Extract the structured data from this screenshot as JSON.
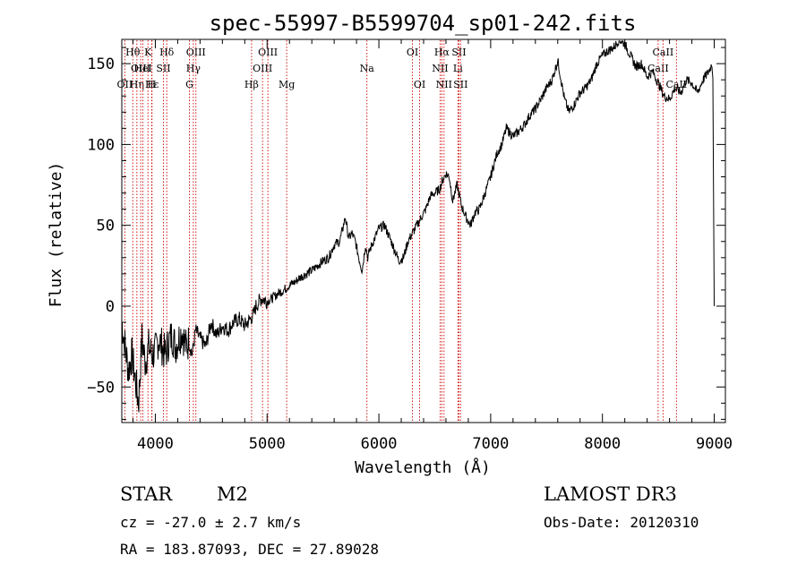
{
  "chart_data": {
    "type": "line",
    "title": "spec-55997-B5599704_sp01-242.fits",
    "xlabel": "Wavelength (Å)",
    "ylabel": "Flux (relative)",
    "xlim": [
      3700,
      9100
    ],
    "ylim": [
      -72,
      165
    ],
    "xticks": [
      4000,
      5000,
      6000,
      7000,
      8000,
      9000
    ],
    "yticks": [
      -50,
      0,
      50,
      100,
      150
    ],
    "grid": false,
    "series": [
      {
        "name": "spectrum",
        "color": "#000000",
        "x": [
          3700,
          3730,
          3760,
          3790,
          3820,
          3850,
          3880,
          3910,
          3940,
          3970,
          4000,
          4030,
          4060,
          4090,
          4120,
          4150,
          4180,
          4210,
          4240,
          4270,
          4300,
          4330,
          4360,
          4400,
          4450,
          4500,
          4550,
          4600,
          4650,
          4700,
          4750,
          4800,
          4850,
          4880,
          4900,
          4950,
          5000,
          5050,
          5100,
          5150,
          5200,
          5250,
          5300,
          5350,
          5400,
          5450,
          5500,
          5550,
          5600,
          5650,
          5700,
          5730,
          5760,
          5790,
          5820,
          5850,
          5880,
          5900,
          5920,
          5950,
          6000,
          6050,
          6080,
          6110,
          6140,
          6180,
          6220,
          6260,
          6300,
          6340,
          6380,
          6420,
          6460,
          6500,
          6540,
          6570,
          6600,
          6630,
          6660,
          6700,
          6740,
          6780,
          6820,
          6860,
          6900,
          6950,
          7000,
          7030,
          7060,
          7100,
          7140,
          7200,
          7250,
          7300,
          7350,
          7400,
          7450,
          7500,
          7550,
          7600,
          7630,
          7660,
          7700,
          7750,
          7800,
          7850,
          7900,
          7950,
          8000,
          8050,
          8100,
          8150,
          8200,
          8250,
          8300,
          8350,
          8400,
          8450,
          8500,
          8550,
          8600,
          8650,
          8700,
          8750,
          8800,
          8850,
          8900,
          8950,
          8980,
          8990,
          9000
        ],
        "values": [
          -10,
          -25,
          -40,
          -30,
          -45,
          -60,
          -20,
          -35,
          -25,
          -30,
          -28,
          -20,
          -25,
          -30,
          -22,
          -18,
          -25,
          -20,
          -15,
          -25,
          -22,
          -30,
          -15,
          -20,
          -25,
          -10,
          -18,
          -12,
          -15,
          -10,
          -8,
          -12,
          -8,
          -5,
          0,
          5,
          3,
          5,
          8,
          10,
          13,
          15,
          18,
          20,
          22,
          25,
          28,
          30,
          38,
          40,
          55,
          42,
          45,
          40,
          30,
          22,
          38,
          30,
          35,
          40,
          48,
          50,
          45,
          40,
          35,
          28,
          30,
          40,
          45,
          50,
          55,
          60,
          68,
          70,
          72,
          78,
          82,
          80,
          65,
          75,
          62,
          55,
          50,
          58,
          60,
          70,
          80,
          88,
          95,
          100,
          110,
          105,
          108,
          112,
          118,
          122,
          128,
          135,
          140,
          152,
          140,
          128,
          120,
          125,
          132,
          135,
          140,
          150,
          155,
          158,
          160,
          165,
          162,
          155,
          148,
          150,
          142,
          145,
          138,
          130,
          128,
          135,
          132,
          140,
          138,
          132,
          140,
          145,
          150,
          140,
          0
        ],
        "fine_noise": "visible high-frequency noise, strongest below 4300 Å"
      }
    ],
    "emission_lines": [
      {
        "name": "Hθ",
        "wavelength": 3798,
        "color": "#cc0000",
        "style": "dotted",
        "row": 1
      },
      {
        "name": "OII",
        "wavelength": 3727,
        "color": "#cc0000",
        "style": "dotted",
        "row": 3
      },
      {
        "name": "K",
        "wavelength": 3934,
        "color": "#cc0000",
        "style": "dotted",
        "row": 1
      },
      {
        "name": "Hε",
        "wavelength": 3970,
        "color": "#cc0000",
        "style": "dotted",
        "row": 3
      },
      {
        "name": "H",
        "wavelength": 3968,
        "color": "#cc0000",
        "style": "dotted",
        "row": 3
      },
      {
        "name": "Hη",
        "wavelength": 3835,
        "color": "#cc0000",
        "style": "dotted",
        "row": 3
      },
      {
        "name": "OIII",
        "wavelength": 3869,
        "color": "#cc0000",
        "style": "dotted",
        "row": 2
      },
      {
        "name": "HeI",
        "wavelength": 3889,
        "color": "#cc0000",
        "style": "dotted",
        "row": 2
      },
      {
        "name": "SII",
        "wavelength": 4072,
        "color": "#cc0000",
        "style": "dotted",
        "row": 2
      },
      {
        "name": "Hδ",
        "wavelength": 4102,
        "color": "#cc0000",
        "style": "dotted",
        "row": 1
      },
      {
        "name": "G",
        "wavelength": 4305,
        "color": "#cc0000",
        "style": "dotted",
        "row": 3
      },
      {
        "name": "Hγ",
        "wavelength": 4340,
        "color": "#cc0000",
        "style": "dotted",
        "row": 2
      },
      {
        "name": "OIII",
        "wavelength": 4363,
        "color": "#cc0000",
        "style": "dotted",
        "row": 1
      },
      {
        "name": "Hβ",
        "wavelength": 4861,
        "color": "#cc0000",
        "style": "dotted",
        "row": 3
      },
      {
        "name": "OIII",
        "wavelength": 4959,
        "color": "#cc0000",
        "style": "dotted",
        "row": 2
      },
      {
        "name": "OIII",
        "wavelength": 5007,
        "color": "#cc0000",
        "style": "dotted",
        "row": 1
      },
      {
        "name": "Mg",
        "wavelength": 5175,
        "color": "#cc0000",
        "style": "dotted",
        "row": 3
      },
      {
        "name": "Na",
        "wavelength": 5893,
        "color": "#cc0000",
        "style": "dotted",
        "row": 2
      },
      {
        "name": "OI",
        "wavelength": 6300,
        "color": "#cc0000",
        "style": "dotted",
        "row": 1
      },
      {
        "name": "OI",
        "wavelength": 6364,
        "color": "#cc0000",
        "style": "dotted",
        "row": 3
      },
      {
        "name": "NII",
        "wavelength": 6548,
        "color": "#cc0000",
        "style": "dotted",
        "row": 2
      },
      {
        "name": "Hα",
        "wavelength": 6563,
        "color": "#cc0000",
        "style": "dotted",
        "row": 1
      },
      {
        "name": "NII",
        "wavelength": 6583,
        "color": "#cc0000",
        "style": "dotted",
        "row": 3
      },
      {
        "name": "Li",
        "wavelength": 6707,
        "color": "#cc0000",
        "style": "dotted",
        "row": 2
      },
      {
        "name": "SII",
        "wavelength": 6716,
        "color": "#cc0000",
        "style": "dotted",
        "row": 1
      },
      {
        "name": "SII",
        "wavelength": 6731,
        "color": "#cc0000",
        "style": "dotted",
        "row": 3
      },
      {
        "name": "CaII",
        "wavelength": 8498,
        "color": "#cc0000",
        "style": "dotted",
        "row": 2
      },
      {
        "name": "CaII",
        "wavelength": 8542,
        "color": "#cc0000",
        "style": "dotted",
        "row": 1
      },
      {
        "name": "CaII",
        "wavelength": 8662,
        "color": "#cc0000",
        "style": "dotted",
        "row": 3
      }
    ]
  },
  "info": {
    "object_class": "STAR",
    "subclass": "M2",
    "survey": "LAMOST DR3",
    "cz": "cz = -27.0 ± 2.7 km/s",
    "obs_date": "Obs-Date: 20120310",
    "coords": "RA = 183.87093, DEC =  27.89028"
  }
}
